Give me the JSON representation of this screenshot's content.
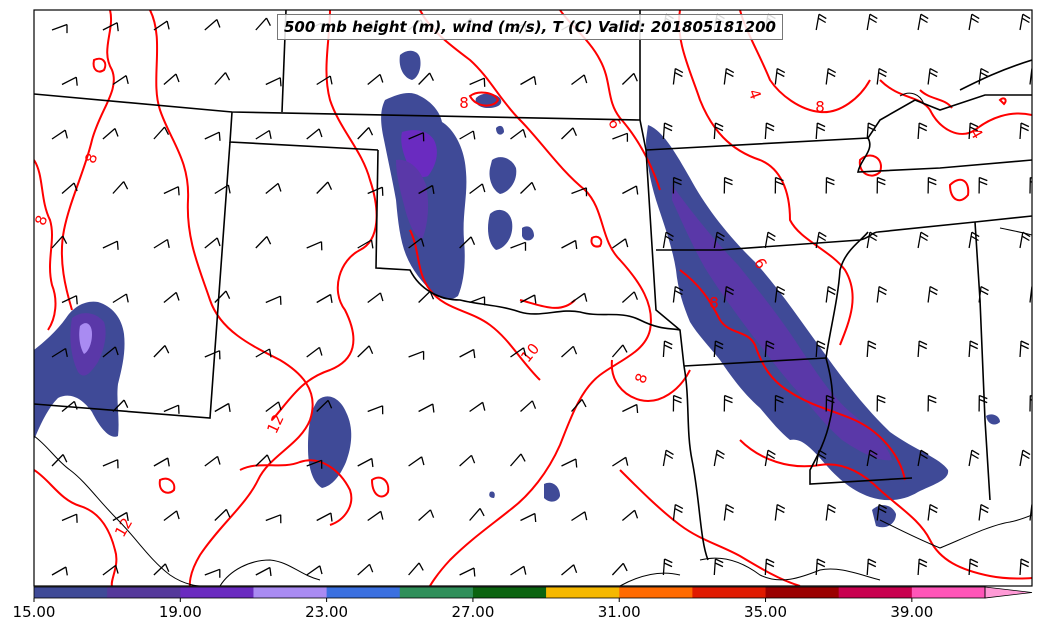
{
  "title": "500 mb height (m), wind (m/s), T (C) Valid: 201805181200",
  "colorbar": {
    "tick_labels": [
      "15.00",
      "19.00",
      "23.00",
      "27.00",
      "31.00",
      "35.00",
      "39.00"
    ],
    "tick_values": [
      15,
      19,
      23,
      27,
      31,
      35,
      39
    ],
    "min": 15,
    "max": 41,
    "colors": [
      "#3f4a97",
      "#55399b",
      "#6a2bc0",
      "#a98bf2",
      "#3b70e0",
      "#2f8f5a",
      "#0b6410",
      "#f5b800",
      "#ff6a00",
      "#e01a00",
      "#9a0000",
      "#c8004f",
      "#ff55b8",
      "#ff9ad6"
    ],
    "extend": "max"
  },
  "contours": {
    "color": "#ff0000",
    "labels": [
      "8",
      "8",
      "8",
      "8",
      "4",
      "6",
      "6",
      "8",
      "8",
      "10",
      "12",
      "12",
      "4"
    ]
  },
  "shading_colors": {
    "primary": "#3f4a97",
    "secondary": "#5a38a8",
    "core": "#6a2bc0",
    "max": "#a98bf2"
  }
}
